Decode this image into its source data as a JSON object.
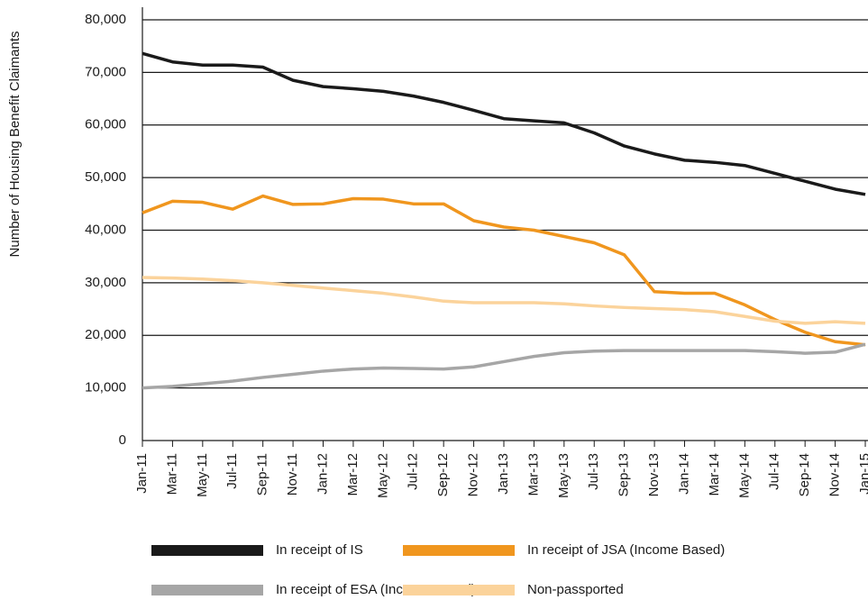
{
  "chart_data": {
    "type": "line",
    "y_label": "Number of Housing Benefit Claimants",
    "categories": [
      "Jan-11",
      "Mar-11",
      "May-11",
      "Jul-11",
      "Sep-11",
      "Nov-11",
      "Jan-12",
      "Mar-12",
      "May-12",
      "Jul-12",
      "Sep-12",
      "Nov-12",
      "Jan-13",
      "Mar-13",
      "May-13",
      "Jul-13",
      "Sep-13",
      "Nov-13",
      "Jan-14",
      "Mar-14",
      "May-14",
      "Jul-14",
      "Sep-14",
      "Nov-14",
      "Jan-15"
    ],
    "series": [
      {
        "name": "In receipt of IS",
        "color": "#1a1a1a",
        "values": [
          73600,
          72000,
          71400,
          71400,
          71000,
          68500,
          67300,
          66900,
          66400,
          65500,
          64300,
          62800,
          61200,
          60800,
          60400,
          58500,
          56000,
          54500,
          53300,
          52900,
          52300,
          50800,
          49300,
          47800,
          46800
        ]
      },
      {
        "name": "In receipt of JSA (Income Based)",
        "color": "#f0961e",
        "values": [
          43300,
          45500,
          45300,
          44000,
          46500,
          44900,
          45000,
          46000,
          45900,
          45000,
          45000,
          41800,
          40600,
          40000,
          38800,
          37600,
          35300,
          28300,
          28000,
          28000,
          25800,
          23000,
          20600,
          18800,
          18200
        ]
      },
      {
        "name": "In receipt of ESA (Income Based)",
        "color": "#a6a6a6",
        "values": [
          10000,
          10300,
          10800,
          11300,
          12000,
          12600,
          13200,
          13600,
          13800,
          13700,
          13600,
          14000,
          15000,
          16000,
          16700,
          17000,
          17100,
          17100,
          17100,
          17100,
          17100,
          16900,
          16600,
          16800,
          18300
        ]
      },
      {
        "name": "Non-passported",
        "color": "#fbd39b",
        "values": [
          31000,
          30900,
          30700,
          30400,
          30000,
          29500,
          29000,
          28500,
          28000,
          27300,
          26500,
          26200,
          26200,
          26200,
          26000,
          25600,
          25300,
          25100,
          24900,
          24500,
          23600,
          22700,
          22300,
          22600,
          22300
        ]
      }
    ],
    "ylim": [
      0,
      80000
    ],
    "yticks": [
      0,
      {
        "value": 10000,
        "label": "10,000"
      },
      {
        "value": 20000,
        "label": "20,000"
      },
      {
        "value": 30000,
        "label": "30,000"
      },
      {
        "value": 40000,
        "label": "40,000"
      },
      {
        "value": 50000,
        "label": "50,000"
      },
      {
        "value": 60000,
        "label": "60,000"
      },
      {
        "value": 70000,
        "label": "70,000"
      },
      {
        "value": 80000,
        "label": "80,000"
      }
    ],
    "grid": true
  }
}
